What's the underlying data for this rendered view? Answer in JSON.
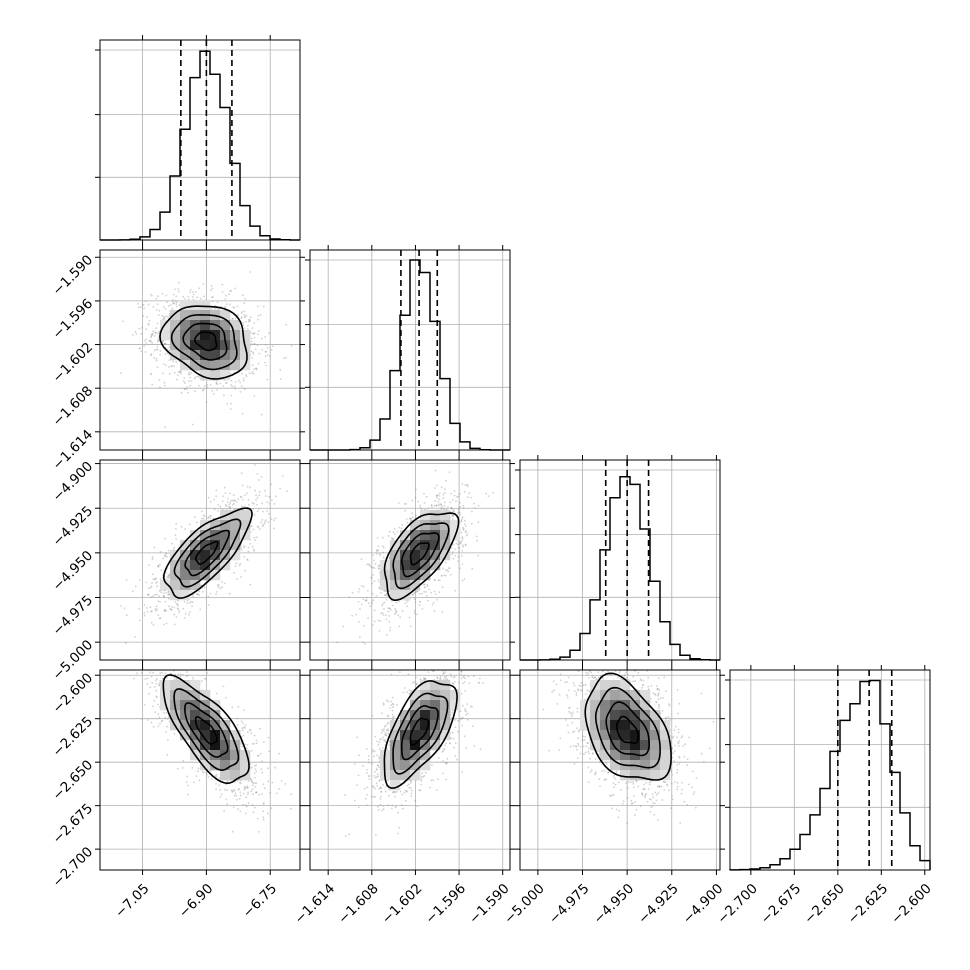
{
  "chart_data": {
    "type": "corner",
    "parameters": [
      {
        "index": 0,
        "range": [
          -7.15,
          -6.68
        ],
        "ticks": [
          -7.05,
          -6.9,
          -6.75
        ],
        "tick_labels": [
          "−7.05",
          "−6.90",
          "−6.75"
        ],
        "mean": -6.9,
        "sigma": 0.05,
        "quantiles": [
          -6.96,
          -6.9,
          -6.84
        ]
      },
      {
        "index": 1,
        "range": [
          -1.6165,
          -1.589
        ],
        "ticks": [
          -1.614,
          -1.608,
          -1.602,
          -1.596,
          -1.59
        ],
        "tick_labels": [
          "−1.614",
          "−1.608",
          "−1.602",
          "−1.596",
          "−1.590"
        ],
        "mean": -1.6015,
        "sigma": 0.0025,
        "quantiles": [
          -1.604,
          -1.6015,
          -1.599
        ]
      },
      {
        "index": 2,
        "range": [
          -5.01,
          -4.898
        ],
        "ticks": [
          -5.0,
          -4.975,
          -4.95,
          -4.925,
          -4.9
        ],
        "tick_labels": [
          "−5.000",
          "−4.975",
          "−4.950",
          "−4.925",
          "−4.900"
        ],
        "mean": -4.95,
        "sigma": 0.012,
        "quantiles": [
          -4.962,
          -4.95,
          -4.938
        ]
      },
      {
        "index": 3,
        "range": [
          -2.712,
          -2.597
        ],
        "ticks": [
          -2.7,
          -2.675,
          -2.65,
          -2.625,
          -2.6
        ],
        "tick_labels": [
          "−2.700",
          "−2.675",
          "−2.650",
          "−2.625",
          "−2.600"
        ],
        "mean": -2.632,
        "sigma": 0.015,
        "quantiles": [
          -2.65,
          -2.632,
          -2.619
        ]
      }
    ],
    "correlations": [
      {
        "row": 1,
        "col": 0,
        "rho": -0.2
      },
      {
        "row": 2,
        "col": 0,
        "rho": 0.72
      },
      {
        "row": 2,
        "col": 1,
        "rho": 0.6
      },
      {
        "row": 3,
        "col": 0,
        "rho": -0.72
      },
      {
        "row": 3,
        "col": 1,
        "rho": 0.62
      },
      {
        "row": 3,
        "col": 2,
        "rho": -0.4
      }
    ],
    "contour_levels_sigma": [
      0.5,
      1,
      1.5,
      2
    ],
    "histogram_bins": 20,
    "grid": true,
    "colors": {
      "contour": "#000000",
      "points": "#9a9a9a",
      "grid": "#b0b0b0",
      "histogram": "#000000"
    }
  }
}
